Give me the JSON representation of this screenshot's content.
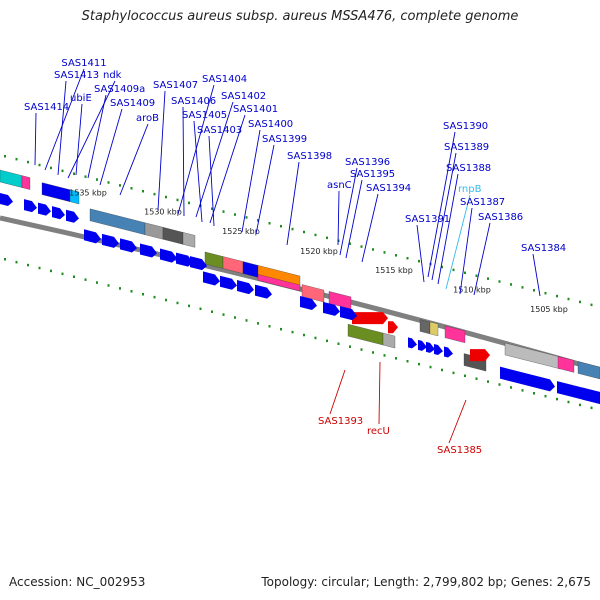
{
  "title": "Staphylococcus aureus subsp. aureus MSSA476, complete genome",
  "footer": {
    "accession": "Accession: NC_002953",
    "summary": "Topology: circular; Length: 2,799,802 bp; Genes: 2,675"
  },
  "colors": {
    "backbone": "#808080",
    "ticks": "#1e8c1e",
    "cds": "#0000ee",
    "label_forward": "#0000cc",
    "label_reverse": "#cc0000",
    "label_rna": "#33bbee"
  },
  "tick_labels": [
    "1535 kbp",
    "1530 kbp",
    "1525 kbp",
    "1520 kbp",
    "1515 kbp",
    "1510 kbp",
    "1505 kbp"
  ],
  "gene_labels": [
    {
      "text": "SAS1411",
      "strand": "forward"
    },
    {
      "text": "SAS1413",
      "strand": "forward"
    },
    {
      "text": "ndk",
      "strand": "forward"
    },
    {
      "text": "ubiE",
      "strand": "forward"
    },
    {
      "text": "SAS1409a",
      "strand": "forward"
    },
    {
      "text": "SAS1414",
      "strand": "forward"
    },
    {
      "text": "SAS1409",
      "strand": "forward"
    },
    {
      "text": "aroB",
      "strand": "forward"
    },
    {
      "text": "SAS1407",
      "strand": "forward"
    },
    {
      "text": "SAS1404",
      "strand": "forward"
    },
    {
      "text": "SAS1406",
      "strand": "forward"
    },
    {
      "text": "SAS1402",
      "strand": "forward"
    },
    {
      "text": "SAS1405",
      "strand": "forward"
    },
    {
      "text": "SAS1401",
      "strand": "forward"
    },
    {
      "text": "SAS1403",
      "strand": "forward"
    },
    {
      "text": "SAS1400",
      "strand": "forward"
    },
    {
      "text": "SAS1399",
      "strand": "forward"
    },
    {
      "text": "SAS1398",
      "strand": "forward"
    },
    {
      "text": "SAS1396",
      "strand": "forward"
    },
    {
      "text": "SAS1395",
      "strand": "forward"
    },
    {
      "text": "asnC",
      "strand": "forward"
    },
    {
      "text": "SAS1394",
      "strand": "forward"
    },
    {
      "text": "SAS1390",
      "strand": "forward"
    },
    {
      "text": "SAS1389",
      "strand": "forward"
    },
    {
      "text": "SAS1388",
      "strand": "forward"
    },
    {
      "text": "rnpB",
      "strand": "rna"
    },
    {
      "text": "SAS1387",
      "strand": "forward"
    },
    {
      "text": "SAS1391",
      "strand": "forward"
    },
    {
      "text": "SAS1386",
      "strand": "forward"
    },
    {
      "text": "SAS1384",
      "strand": "forward"
    },
    {
      "text": "SAS1393",
      "strand": "reverse"
    },
    {
      "text": "recU",
      "strand": "reverse"
    },
    {
      "text": "SAS1385",
      "strand": "reverse"
    }
  ]
}
